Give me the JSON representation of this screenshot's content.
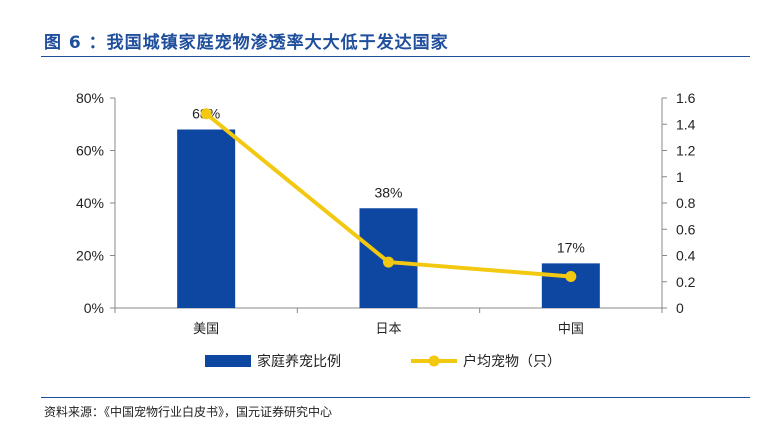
{
  "figure": {
    "title": "图 6 ：我国城镇家庭宠物渗透率大大低于发达国家",
    "source": "资料来源：《中国宠物行业白皮书》，国元证券研究中心"
  },
  "chart_data": {
    "type": "bar",
    "categories": [
      "美国",
      "日本",
      "中国"
    ],
    "series": [
      {
        "name": "家庭养宠比例",
        "type": "bar",
        "axis": "left",
        "values": [
          68,
          38,
          17
        ],
        "value_labels": [
          "68%",
          "38%",
          "17%"
        ],
        "color": "#0d47a1"
      },
      {
        "name": "户均宠物（只）",
        "type": "line",
        "axis": "right",
        "values": [
          1.48,
          0.35,
          0.24
        ],
        "color": "#f2c811"
      }
    ],
    "y_left": {
      "ylim": [
        0,
        80
      ],
      "ticks": [
        0,
        20,
        40,
        60,
        80
      ],
      "tick_labels": [
        "0%",
        "20%",
        "40%",
        "60%",
        "80%"
      ]
    },
    "y_right": {
      "ylim": [
        0,
        1.6
      ],
      "ticks": [
        0,
        0.2,
        0.4,
        0.6,
        0.8,
        1,
        1.2,
        1.4,
        1.6
      ],
      "tick_labels": [
        "0",
        "0.2",
        "0.4",
        "0.6",
        "0.8",
        "1",
        "1.2",
        "1.4",
        "1.6"
      ]
    },
    "grid": false,
    "legend_position": "bottom"
  }
}
